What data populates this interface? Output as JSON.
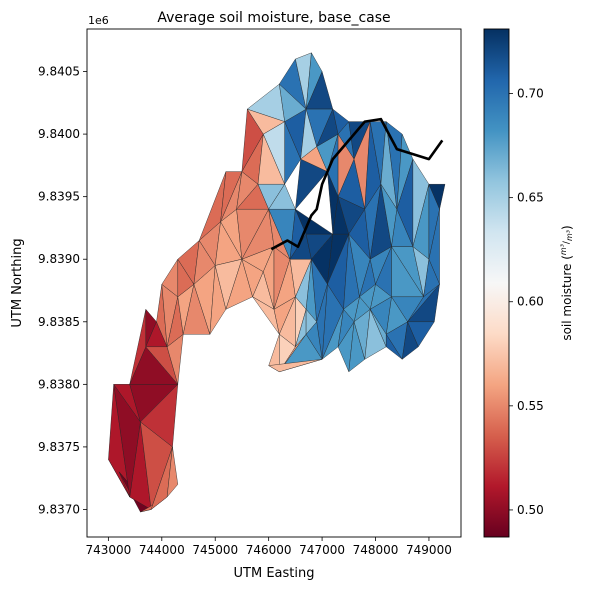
{
  "chart_data": {
    "type": "heatmap",
    "title": "Average soil moisture, base_case",
    "xlabel": "UTM Easting",
    "ylabel": "UTM Northing",
    "y_offset_text": "1e6",
    "xlim": [
      742600,
      749600
    ],
    "ylim": [
      9836780,
      9840840
    ],
    "x_ticks": [
      743000,
      744000,
      745000,
      746000,
      747000,
      748000,
      749000
    ],
    "x_tick_labels": [
      "743000",
      "744000",
      "745000",
      "746000",
      "747000",
      "748000",
      "749000"
    ],
    "y_ticks": [
      9837000,
      9837500,
      9838000,
      9838500,
      9839000,
      9839500,
      9840000,
      9840500
    ],
    "y_tick_labels": [
      "9.8370",
      "9.8375",
      "9.8380",
      "9.8385",
      "9.8390",
      "9.8395",
      "9.8400",
      "9.8405"
    ],
    "colorbar": {
      "label": "soil moisture",
      "unit_numerator": "m³",
      "unit_denominator": "m³",
      "vmin": 0.487,
      "vmax": 0.731,
      "ticks": [
        0.5,
        0.55,
        0.6,
        0.65,
        0.7
      ],
      "tick_labels": [
        "0.50",
        "0.55",
        "0.60",
        "0.65",
        "0.70"
      ],
      "colormap": [
        "#67001f",
        "#b2182b",
        "#d6604d",
        "#f4a582",
        "#fddbc7",
        "#f7f7f7",
        "#d1e5f0",
        "#92c5de",
        "#4393c3",
        "#2166ac",
        "#053061"
      ]
    },
    "mesh": {
      "edge_color": "#222222",
      "points": [
        [
          743000,
          9837400
        ],
        [
          743200,
          9837300
        ],
        [
          743600,
          9837700
        ],
        [
          743400,
          9838000
        ],
        [
          743100,
          9838000
        ],
        [
          743700,
          9838600
        ],
        [
          743900,
          9838500
        ],
        [
          744100,
          9838300
        ],
        [
          744300,
          9838000
        ],
        [
          744200,
          9837500
        ],
        [
          744100,
          9837100
        ],
        [
          743800,
          9837000
        ],
        [
          743600,
          9836980
        ],
        [
          744300,
          9837200
        ],
        [
          743400,
          9837100
        ],
        [
          743700,
          9838300
        ],
        [
          744000,
          9838800
        ],
        [
          744300,
          9838700
        ],
        [
          744600,
          9838800
        ],
        [
          744400,
          9838400
        ],
        [
          744900,
          9838400
        ],
        [
          745200,
          9838600
        ],
        [
          745000,
          9838950
        ],
        [
          744700,
          9839150
        ],
        [
          744300,
          9839000
        ],
        [
          745100,
          9839300
        ],
        [
          745400,
          9839400
        ],
        [
          745500,
          9839000
        ],
        [
          745900,
          9838900
        ],
        [
          745700,
          9838700
        ],
        [
          745200,
          9839700
        ],
        [
          745500,
          9839700
        ],
        [
          745600,
          9840200
        ],
        [
          745900,
          9840000
        ],
        [
          745800,
          9839600
        ],
        [
          746000,
          9839400
        ],
        [
          746300,
          9839600
        ],
        [
          746100,
          9839100
        ],
        [
          746400,
          9839000
        ],
        [
          746100,
          9838600
        ],
        [
          746200,
          9838400
        ],
        [
          746500,
          9838700
        ],
        [
          746700,
          9838600
        ],
        [
          746900,
          9838500
        ],
        [
          746800,
          9839000
        ],
        [
          746300,
          9840100
        ],
        [
          746200,
          9840400
        ],
        [
          746500,
          9840600
        ],
        [
          746800,
          9840650
        ],
        [
          747000,
          9840500
        ],
        [
          746700,
          9840200
        ],
        [
          746900,
          9839900
        ],
        [
          747200,
          9840200
        ],
        [
          747300,
          9840000
        ],
        [
          747500,
          9840100
        ],
        [
          747600,
          9839800
        ],
        [
          747900,
          9840100
        ],
        [
          748200,
          9840100
        ],
        [
          748500,
          9840000
        ],
        [
          748700,
          9839800
        ],
        [
          749000,
          9839600
        ],
        [
          749200,
          9839400
        ],
        [
          749300,
          9839600
        ],
        [
          747100,
          9839700
        ],
        [
          747300,
          9839500
        ],
        [
          747500,
          9839200
        ],
        [
          747800,
          9839400
        ],
        [
          748100,
          9839600
        ],
        [
          748400,
          9839400
        ],
        [
          748700,
          9839100
        ],
        [
          749000,
          9839000
        ],
        [
          749200,
          9838800
        ],
        [
          748900,
          9838700
        ],
        [
          748600,
          9838500
        ],
        [
          748300,
          9838700
        ],
        [
          748000,
          9838800
        ],
        [
          747700,
          9838700
        ],
        [
          747400,
          9838600
        ],
        [
          747100,
          9838800
        ],
        [
          747200,
          9839200
        ],
        [
          747600,
          9838500
        ],
        [
          747900,
          9838600
        ],
        [
          748200,
          9838400
        ],
        [
          748500,
          9838200
        ],
        [
          748200,
          9838300
        ],
        [
          747800,
          9838200
        ],
        [
          747500,
          9838100
        ],
        [
          747300,
          9838300
        ],
        [
          747000,
          9838200
        ],
        [
          746500,
          9838300
        ],
        [
          746200,
          9838100
        ],
        [
          746000,
          9838150
        ],
        [
          746700,
          9838400
        ],
        [
          748800,
          9838300
        ],
        [
          749100,
          9838500
        ],
        [
          747900,
          9839000
        ],
        [
          748300,
          9839100
        ],
        [
          746700,
          9839200
        ],
        [
          746500,
          9839400
        ],
        [
          746600,
          9839800
        ]
      ],
      "triangles": [
        [
          0,
          1,
          14,
          0.49
        ],
        [
          0,
          14,
          4,
          0.51
        ],
        [
          1,
          11,
          14,
          0.51
        ],
        [
          1,
          12,
          11,
          0.49
        ],
        [
          14,
          11,
          2,
          0.51
        ],
        [
          4,
          14,
          2,
          0.5
        ],
        [
          4,
          2,
          3,
          0.51
        ],
        [
          2,
          11,
          9,
          0.53
        ],
        [
          11,
          12,
          10,
          0.54
        ],
        [
          11,
          10,
          9,
          0.54
        ],
        [
          10,
          13,
          9,
          0.55
        ],
        [
          2,
          9,
          8,
          0.52
        ],
        [
          2,
          8,
          3,
          0.5
        ],
        [
          3,
          8,
          15,
          0.5
        ],
        [
          3,
          15,
          5,
          0.52
        ],
        [
          5,
          15,
          6,
          0.5
        ],
        [
          15,
          7,
          6,
          0.51
        ],
        [
          15,
          8,
          7,
          0.53
        ],
        [
          8,
          19,
          7,
          0.55
        ],
        [
          6,
          7,
          16,
          0.54
        ],
        [
          7,
          17,
          16,
          0.55
        ],
        [
          7,
          19,
          17,
          0.54
        ],
        [
          17,
          19,
          18,
          0.56
        ],
        [
          16,
          17,
          24,
          0.55
        ],
        [
          17,
          18,
          24,
          0.54
        ],
        [
          18,
          19,
          20,
          0.55
        ],
        [
          18,
          20,
          22,
          0.56
        ],
        [
          24,
          18,
          23,
          0.54
        ],
        [
          18,
          22,
          23,
          0.55
        ],
        [
          20,
          21,
          22,
          0.56
        ],
        [
          23,
          22,
          25,
          0.55
        ],
        [
          22,
          27,
          25,
          0.56
        ],
        [
          21,
          27,
          22,
          0.57
        ],
        [
          21,
          29,
          27,
          0.56
        ],
        [
          27,
          29,
          28,
          0.56
        ],
        [
          25,
          27,
          26,
          0.56
        ],
        [
          23,
          25,
          30,
          0.54
        ],
        [
          25,
          26,
          31,
          0.55
        ],
        [
          25,
          31,
          30,
          0.54
        ],
        [
          26,
          34,
          31,
          0.55
        ],
        [
          26,
          27,
          35,
          0.55
        ],
        [
          27,
          28,
          37,
          0.56
        ],
        [
          27,
          37,
          35,
          0.55
        ],
        [
          26,
          35,
          34,
          0.54
        ],
        [
          31,
          34,
          33,
          0.54
        ],
        [
          31,
          33,
          32,
          0.53
        ],
        [
          28,
          29,
          39,
          0.57
        ],
        [
          28,
          39,
          37,
          0.56
        ],
        [
          37,
          39,
          38,
          0.55
        ],
        [
          35,
          37,
          38,
          0.55
        ],
        [
          29,
          40,
          39,
          0.57
        ],
        [
          39,
          40,
          41,
          0.56
        ],
        [
          39,
          41,
          38,
          0.56
        ],
        [
          40,
          89,
          41,
          0.57
        ],
        [
          41,
          89,
          42,
          0.58
        ],
        [
          41,
          42,
          44,
          0.66
        ],
        [
          41,
          44,
          38,
          0.57
        ],
        [
          42,
          43,
          44,
          0.68
        ],
        [
          40,
          91,
          90,
          0.57
        ],
        [
          40,
          90,
          89,
          0.58
        ],
        [
          89,
          92,
          42,
          0.66
        ],
        [
          34,
          35,
          36,
          0.66
        ],
        [
          35,
          38,
          98,
          0.69
        ],
        [
          35,
          98,
          36,
          0.66
        ],
        [
          38,
          97,
          98,
          0.71
        ],
        [
          38,
          44,
          97,
          0.72
        ],
        [
          33,
          34,
          36,
          0.57
        ],
        [
          33,
          36,
          45,
          0.64
        ],
        [
          32,
          33,
          45,
          0.57
        ],
        [
          32,
          45,
          46,
          0.65
        ],
        [
          45,
          36,
          99,
          0.7
        ],
        [
          45,
          99,
          50,
          0.71
        ],
        [
          46,
          45,
          50,
          0.67
        ],
        [
          46,
          50,
          47,
          0.7
        ],
        [
          47,
          50,
          48,
          0.65
        ],
        [
          48,
          50,
          49,
          0.68
        ],
        [
          49,
          50,
          52,
          0.72
        ],
        [
          50,
          51,
          52,
          0.7
        ],
        [
          50,
          99,
          51,
          0.65
        ],
        [
          99,
          98,
          63,
          0.72
        ],
        [
          98,
          97,
          79,
          0.73
        ],
        [
          97,
          44,
          79,
          0.72
        ],
        [
          44,
          78,
          79,
          0.73
        ],
        [
          44,
          43,
          78,
          0.7
        ],
        [
          51,
          99,
          63,
          0.56
        ],
        [
          51,
          63,
          53,
          0.68
        ],
        [
          52,
          51,
          53,
          0.72
        ],
        [
          53,
          54,
          52,
          0.71
        ],
        [
          53,
          63,
          64,
          0.7
        ],
        [
          53,
          64,
          55,
          0.55
        ],
        [
          54,
          53,
          55,
          0.7
        ],
        [
          55,
          56,
          54,
          0.72
        ],
        [
          55,
          64,
          66,
          0.71
        ],
        [
          55,
          66,
          56,
          0.55
        ],
        [
          56,
          66,
          67,
          0.71
        ],
        [
          56,
          67,
          57,
          0.7
        ],
        [
          57,
          67,
          68,
          0.67
        ],
        [
          57,
          68,
          58,
          0.7
        ],
        [
          58,
          68,
          59,
          0.68
        ],
        [
          59,
          68,
          69,
          0.71
        ],
        [
          59,
          69,
          60,
          0.66
        ],
        [
          60,
          69,
          70,
          0.68
        ],
        [
          60,
          70,
          61,
          0.7
        ],
        [
          61,
          62,
          60,
          0.73
        ],
        [
          61,
          70,
          71,
          0.7
        ],
        [
          63,
          79,
          64,
          0.73
        ],
        [
          64,
          79,
          65,
          0.73
        ],
        [
          64,
          65,
          66,
          0.72
        ],
        [
          65,
          95,
          66,
          0.71
        ],
        [
          66,
          95,
          67,
          0.7
        ],
        [
          67,
          95,
          96,
          0.72
        ],
        [
          67,
          96,
          68,
          0.68
        ],
        [
          68,
          96,
          69,
          0.69
        ],
        [
          69,
          96,
          72,
          0.68
        ],
        [
          69,
          72,
          70,
          0.66
        ],
        [
          70,
          72,
          71,
          0.7
        ],
        [
          79,
          78,
          65,
          0.73
        ],
        [
          78,
          77,
          65,
          0.71
        ],
        [
          65,
          77,
          76,
          0.7
        ],
        [
          65,
          76,
          95,
          0.69
        ],
        [
          95,
          76,
          75,
          0.7
        ],
        [
          95,
          75,
          96,
          0.69
        ],
        [
          96,
          75,
          74,
          0.7
        ],
        [
          96,
          74,
          72,
          0.68
        ],
        [
          72,
          74,
          73,
          0.69
        ],
        [
          72,
          73,
          71,
          0.7
        ],
        [
          71,
          73,
          94,
          0.72
        ],
        [
          73,
          93,
          94,
          0.71
        ],
        [
          73,
          74,
          82,
          0.68
        ],
        [
          73,
          82,
          83,
          0.7
        ],
        [
          73,
          83,
          93,
          0.72
        ],
        [
          74,
          75,
          81,
          0.68
        ],
        [
          74,
          81,
          82,
          0.69
        ],
        [
          75,
          76,
          81,
          0.68
        ],
        [
          76,
          80,
          81,
          0.68
        ],
        [
          76,
          77,
          80,
          0.68
        ],
        [
          77,
          78,
          88,
          0.7
        ],
        [
          77,
          88,
          87,
          0.68
        ],
        [
          77,
          87,
          80,
          0.69
        ],
        [
          80,
          87,
          86,
          0.68
        ],
        [
          80,
          86,
          85,
          0.68
        ],
        [
          80,
          85,
          81,
          0.67
        ],
        [
          81,
          85,
          84,
          0.66
        ],
        [
          81,
          84,
          82,
          0.67
        ],
        [
          82,
          84,
          83,
          0.71
        ],
        [
          78,
          43,
          88,
          0.7
        ],
        [
          43,
          92,
          88,
          0.69
        ],
        [
          43,
          42,
          92,
          0.66
        ],
        [
          92,
          89,
          90,
          0.56
        ],
        [
          92,
          90,
          88,
          0.68
        ],
        [
          90,
          91,
          88,
          0.57
        ]
      ],
      "boundary_line": [
        [
          746050,
          9839080
        ],
        [
          746350,
          9839150
        ],
        [
          746550,
          9839100
        ],
        [
          746800,
          9839350
        ],
        [
          746900,
          9839400
        ],
        [
          747000,
          9839600
        ],
        [
          747200,
          9839800
        ],
        [
          747500,
          9839950
        ],
        [
          747800,
          9840100
        ],
        [
          748100,
          9840120
        ],
        [
          748400,
          9839880
        ],
        [
          748700,
          9839840
        ],
        [
          749000,
          9839800
        ],
        [
          749250,
          9839950
        ]
      ]
    }
  }
}
